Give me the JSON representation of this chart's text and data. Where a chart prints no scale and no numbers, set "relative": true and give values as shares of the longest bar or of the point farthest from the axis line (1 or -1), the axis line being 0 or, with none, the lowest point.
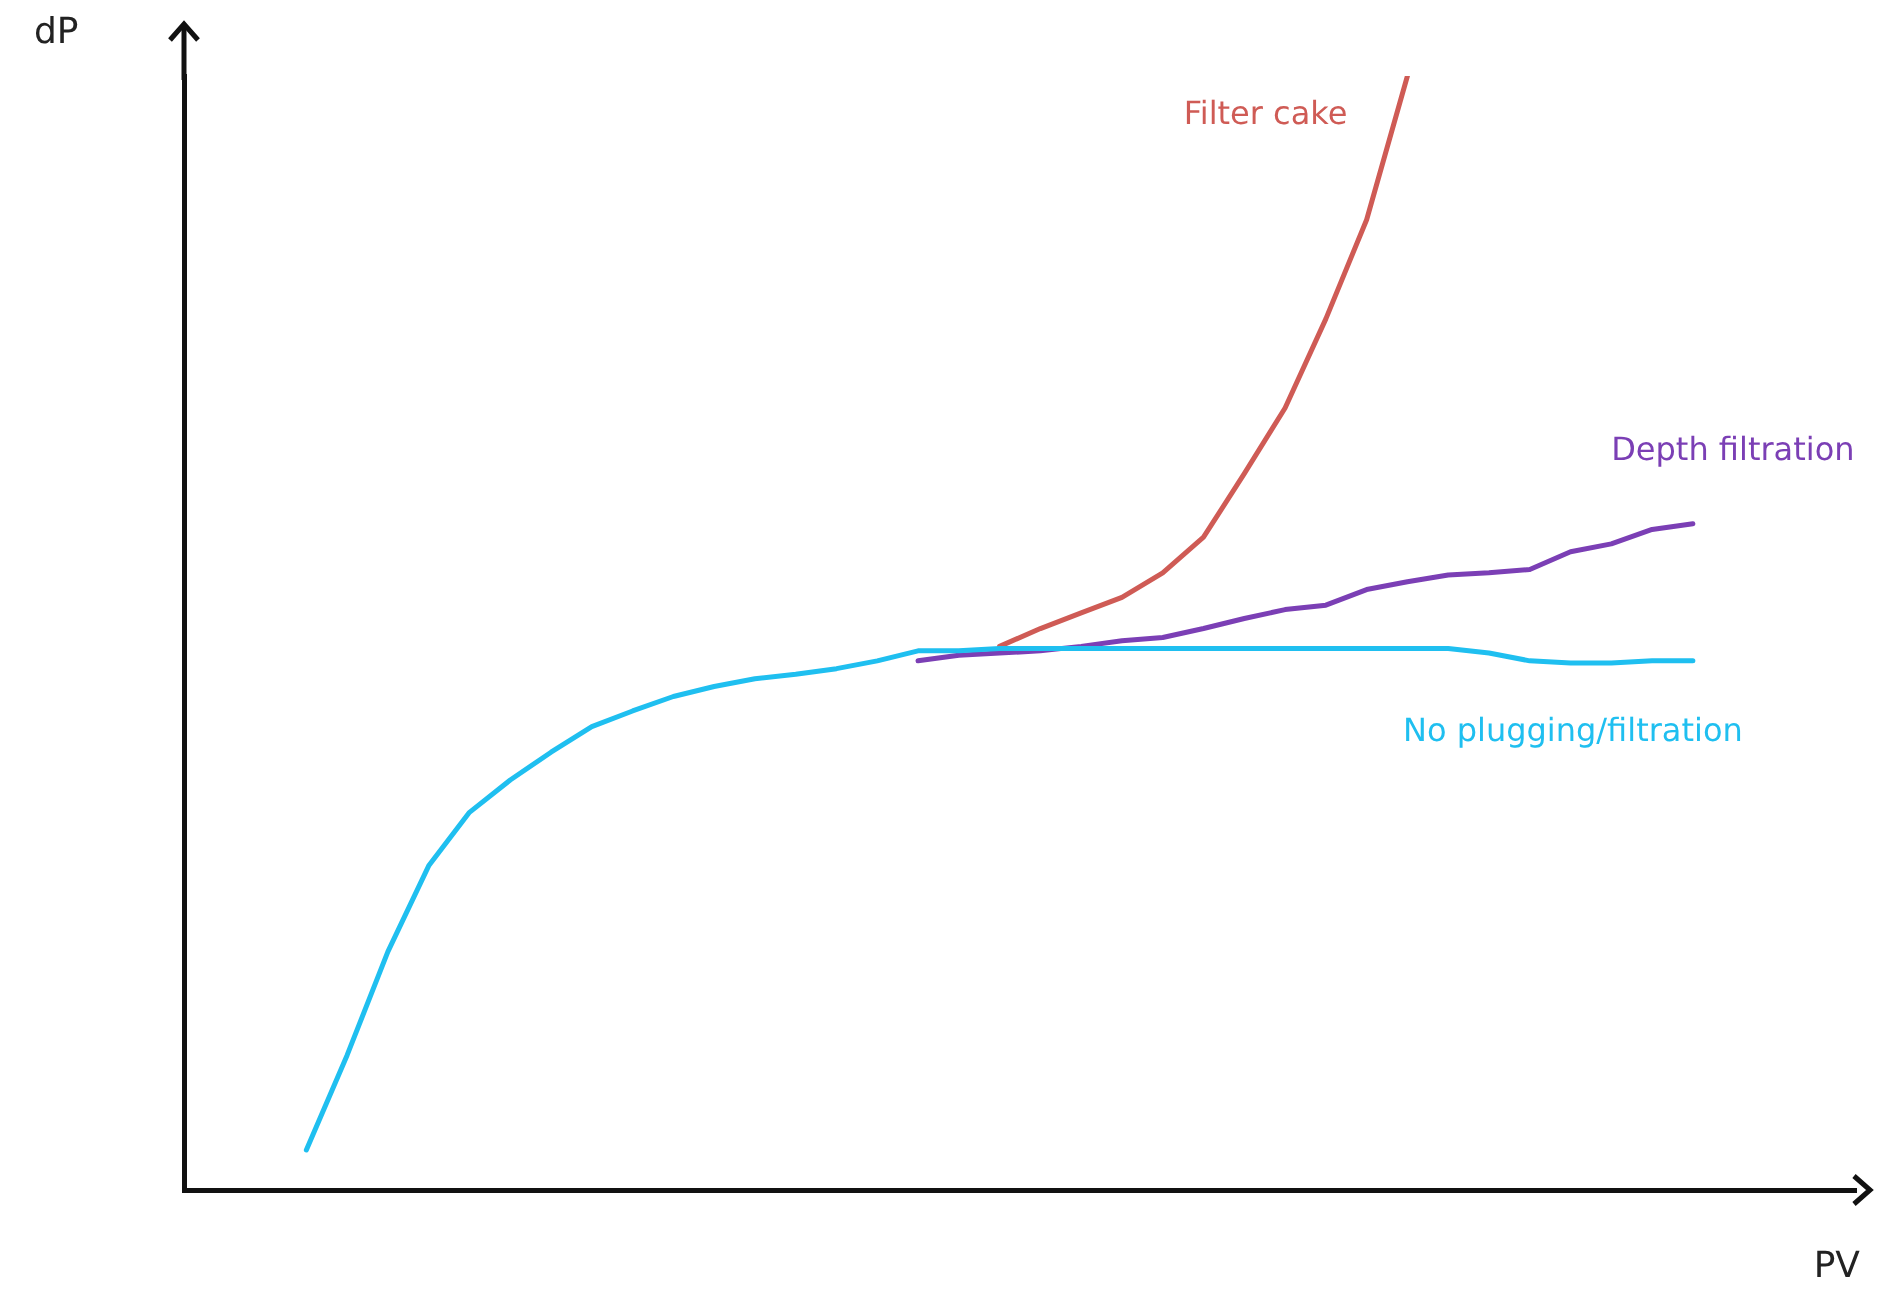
{
  "chart_data": {
    "type": "line",
    "relative": true,
    "xlabel": "PV",
    "ylabel": "dP",
    "legend": false,
    "grid": false,
    "marker": "none",
    "line_style": "solid",
    "categories": [
      null,
      null,
      null,
      null,
      null,
      null,
      null,
      null,
      null,
      null,
      null,
      null,
      null,
      null,
      null,
      null,
      null,
      null,
      null,
      null,
      null,
      null,
      null,
      null,
      null,
      null,
      null,
      null,
      null,
      null,
      null,
      null,
      null,
      null,
      null,
      null,
      null,
      null,
      null,
      null,
      null,
      null
    ],
    "series": [
      {
        "name": "No plugging/filtration",
        "color": "#1fbff0",
        "values": [
          null,
          null,
          null,
          0.036,
          0.121,
          0.214,
          0.291,
          0.339,
          0.368,
          0.393,
          0.416,
          0.43,
          0.443,
          0.452,
          0.459,
          0.463,
          0.468,
          0.475,
          0.484,
          0.484,
          0.486,
          0.486,
          0.486,
          0.486,
          0.486,
          0.486,
          0.486,
          0.486,
          0.486,
          0.486,
          0.486,
          0.486,
          0.482,
          0.475,
          0.473,
          0.473,
          0.475,
          0.475,
          null,
          null,
          null,
          null
        ]
      },
      {
        "name": "Depth filtration",
        "color": "#7b3fb5",
        "values": [
          null,
          null,
          null,
          null,
          null,
          null,
          null,
          null,
          null,
          null,
          null,
          null,
          null,
          null,
          null,
          null,
          null,
          null,
          0.475,
          0.48,
          0.482,
          0.484,
          0.488,
          0.493,
          0.496,
          0.504,
          0.513,
          0.521,
          0.525,
          0.539,
          0.546,
          0.552,
          0.554,
          0.557,
          0.573,
          0.58,
          0.593,
          0.598,
          null,
          null,
          null,
          null
        ]
      },
      {
        "name": "Filter cake",
        "color": "#cf5b55",
        "values": [
          null,
          null,
          null,
          null,
          null,
          null,
          null,
          null,
          null,
          null,
          null,
          null,
          null,
          null,
          null,
          null,
          null,
          null,
          null,
          null,
          0.488,
          0.504,
          0.518,
          0.532,
          0.554,
          0.586,
          0.643,
          0.702,
          0.782,
          0.871,
          1.0,
          null,
          null,
          null,
          null,
          null,
          null,
          null,
          null,
          null,
          null,
          null
        ]
      }
    ]
  }
}
